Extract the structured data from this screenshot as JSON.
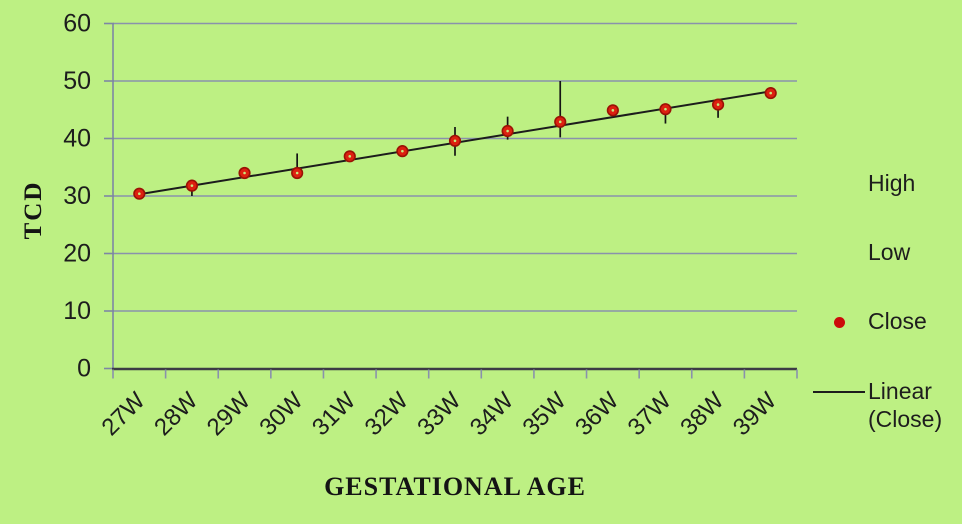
{
  "chart_data": {
    "type": "stock-high-low-close",
    "title": "",
    "xlabel": "GESTATIONAL AGE",
    "ylabel": "TCD",
    "categories": [
      "27W",
      "28W",
      "29W",
      "30W",
      "31W",
      "32W",
      "33W",
      "34W",
      "35W",
      "36W",
      "37W",
      "38W",
      "39W"
    ],
    "y_ticks": [
      0,
      10,
      20,
      30,
      40,
      50,
      60
    ],
    "ylim": [
      0,
      60
    ],
    "grid": "horizontal",
    "legend_position": "right",
    "series": [
      {
        "name": "High",
        "values": [
          30.6,
          32.8,
          34.1,
          37.4,
          37.3,
          38.2,
          42.0,
          43.8,
          50.0,
          45.2,
          45.6,
          46.3,
          48.8
        ]
      },
      {
        "name": "Low",
        "values": [
          30.2,
          30.0,
          33.6,
          33.5,
          36.5,
          37.4,
          37.0,
          39.8,
          40.2,
          44.5,
          42.6,
          43.6,
          47.0
        ]
      },
      {
        "name": "Close",
        "values": [
          30.4,
          31.8,
          34.0,
          34.0,
          36.9,
          37.8,
          39.6,
          41.3,
          42.9,
          44.9,
          45.1,
          45.9,
          47.9
        ]
      }
    ],
    "trendline": {
      "name": "Linear (Close)",
      "start_value": 30.3,
      "end_value": 48.2
    },
    "colors": {
      "background": "#bdf083",
      "gridline": "#8992ac",
      "x_axis": "#3c3c44",
      "y_axis": "#7d87a4",
      "whisker": "#141414",
      "trendline": "#1c1c1c",
      "marker_fill": "#dd2010",
      "marker_border": "#9a1205",
      "marker_center": "#c8e87e",
      "text": "#1d1d1d",
      "legend_dot": "#cc0a0a"
    }
  },
  "legend": {
    "items": [
      {
        "label": "High",
        "marker": "none"
      },
      {
        "label": "Low",
        "marker": "none"
      },
      {
        "label": "Close",
        "marker": "red-dot"
      },
      {
        "label": "Linear (Close)",
        "marker": "black-line"
      }
    ]
  }
}
